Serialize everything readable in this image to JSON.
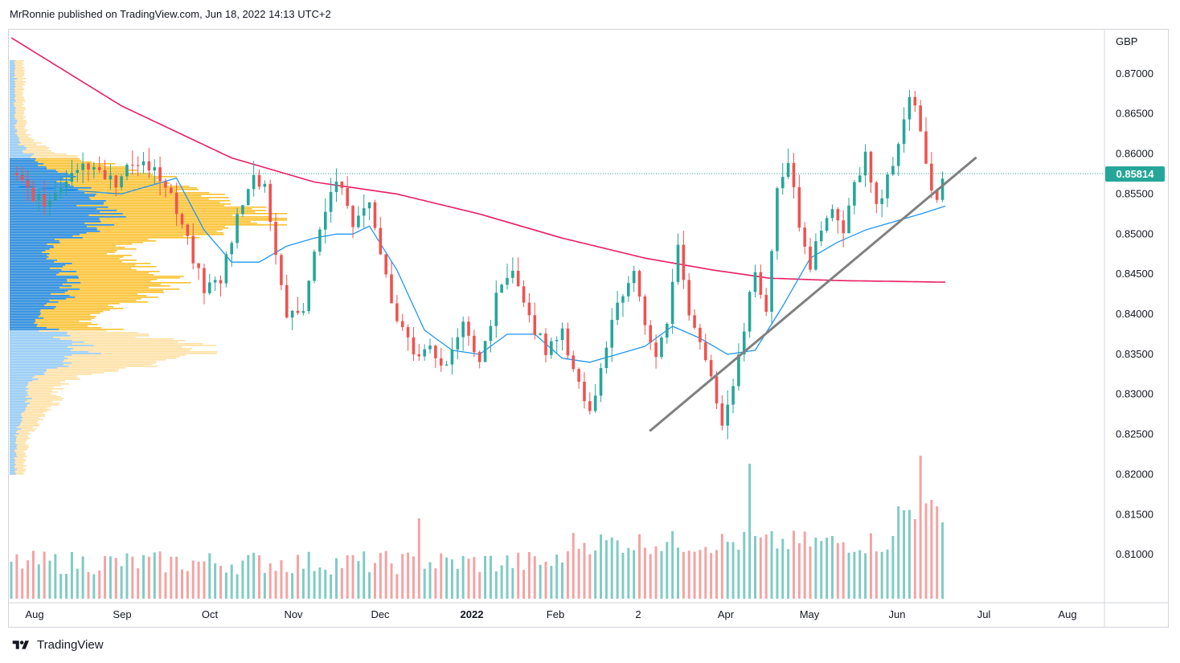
{
  "header": {
    "text": "MrRonnie published on TradingView.com, Jun 18, 2022 14:13 UTC+2"
  },
  "footer": {
    "brand": "TradingView",
    "logo_icon": "tradingview-logo-icon"
  },
  "colors": {
    "up": "#26a69a",
    "down": "#ef5350",
    "up_volume": "#80cbc4",
    "down_volume": "#f4a3a3",
    "ma_long": "#e91e63",
    "ma_short": "#2196f3",
    "trendline": "#808080",
    "vp_blue_dark": "#1e88e5",
    "vp_blue_light": "#90caf9",
    "vp_yellow_dark": "#fbc02d",
    "vp_yellow_light": "#ffe0a3",
    "last_price_bg": "#26a69a"
  },
  "chart_data": {
    "type": "candlestick",
    "symbol_currency": "GBP",
    "last_price_label": "0.85814",
    "last_price": 0.85814,
    "x_ticks": [
      "Aug",
      "Sep",
      "Oct",
      "Nov",
      "Dec",
      "2022",
      "Feb",
      "2",
      "Apr",
      "May",
      "Jun",
      "Jul",
      "Aug"
    ],
    "y_ticks": [
      "0.87000",
      "0.86500",
      "0.86000",
      "0.85500",
      "0.85000",
      "0.84500",
      "0.84000",
      "0.83500",
      "0.83000",
      "0.82500",
      "0.82000",
      "0.81500",
      "0.81000"
    ],
    "ylim": [
      0.8045,
      0.8755
    ],
    "price_path": [
      [
        0,
        0.8575
      ],
      [
        12,
        0.8535
      ],
      [
        22,
        0.858
      ],
      [
        30,
        0.859
      ],
      [
        38,
        0.856
      ],
      [
        45,
        0.8595
      ],
      [
        52,
        0.858
      ],
      [
        58,
        0.8545
      ],
      [
        64,
        0.849
      ],
      [
        70,
        0.843
      ],
      [
        76,
        0.8445
      ],
      [
        82,
        0.852
      ],
      [
        88,
        0.857
      ],
      [
        92,
        0.856
      ],
      [
        96,
        0.848
      ],
      [
        100,
        0.8395
      ],
      [
        106,
        0.841
      ],
      [
        112,
        0.851
      ],
      [
        118,
        0.857
      ],
      [
        124,
        0.851
      ],
      [
        130,
        0.8545
      ],
      [
        134,
        0.847
      ],
      [
        140,
        0.8395
      ],
      [
        146,
        0.8355
      ],
      [
        152,
        0.8355
      ],
      [
        158,
        0.8335
      ],
      [
        164,
        0.8385
      ],
      [
        170,
        0.8335
      ],
      [
        176,
        0.842
      ],
      [
        182,
        0.8455
      ],
      [
        188,
        0.8395
      ],
      [
        194,
        0.8355
      ],
      [
        200,
        0.8375
      ],
      [
        206,
        0.8315
      ],
      [
        210,
        0.8275
      ],
      [
        214,
        0.833
      ],
      [
        218,
        0.8395
      ],
      [
        222,
        0.843
      ],
      [
        226,
        0.8455
      ],
      [
        230,
        0.839
      ],
      [
        234,
        0.834
      ],
      [
        238,
        0.8395
      ],
      [
        242,
        0.848
      ],
      [
        246,
        0.8405
      ],
      [
        250,
        0.837
      ],
      [
        254,
        0.8315
      ],
      [
        258,
        0.8265
      ],
      [
        262,
        0.831
      ],
      [
        266,
        0.8385
      ],
      [
        270,
        0.846
      ],
      [
        274,
        0.84
      ],
      [
        278,
        0.855
      ],
      [
        282,
        0.8595
      ],
      [
        286,
        0.851
      ],
      [
        290,
        0.846
      ],
      [
        294,
        0.851
      ],
      [
        298,
        0.8535
      ],
      [
        302,
        0.85
      ],
      [
        306,
        0.856
      ],
      [
        310,
        0.8595
      ],
      [
        314,
        0.8535
      ],
      [
        318,
        0.857
      ],
      [
        321,
        0.86
      ],
      [
        324,
        0.865
      ],
      [
        327,
        0.869
      ],
      [
        330,
        0.8625
      ],
      [
        333,
        0.856
      ],
      [
        336,
        0.8535
      ],
      [
        339,
        0.8581
      ]
    ],
    "ma_long": [
      [
        0,
        0.8745
      ],
      [
        40,
        0.866
      ],
      [
        80,
        0.8595
      ],
      [
        110,
        0.8565
      ],
      [
        140,
        0.855
      ],
      [
        170,
        0.8525
      ],
      [
        200,
        0.8495
      ],
      [
        230,
        0.847
      ],
      [
        255,
        0.8455
      ],
      [
        275,
        0.8445
      ],
      [
        300,
        0.8442
      ],
      [
        339,
        0.844
      ]
    ],
    "ma_short": [
      [
        0,
        0.856
      ],
      [
        40,
        0.855
      ],
      [
        60,
        0.857
      ],
      [
        70,
        0.8505
      ],
      [
        80,
        0.8465
      ],
      [
        90,
        0.8465
      ],
      [
        100,
        0.8485
      ],
      [
        110,
        0.8495
      ],
      [
        118,
        0.85
      ],
      [
        124,
        0.85
      ],
      [
        130,
        0.851
      ],
      [
        140,
        0.8455
      ],
      [
        150,
        0.838
      ],
      [
        160,
        0.8355
      ],
      [
        170,
        0.835
      ],
      [
        180,
        0.8375
      ],
      [
        190,
        0.8375
      ],
      [
        200,
        0.8345
      ],
      [
        210,
        0.834
      ],
      [
        220,
        0.835
      ],
      [
        230,
        0.836
      ],
      [
        240,
        0.8385
      ],
      [
        250,
        0.837
      ],
      [
        260,
        0.835
      ],
      [
        270,
        0.8355
      ],
      [
        280,
        0.841
      ],
      [
        290,
        0.847
      ],
      [
        300,
        0.849
      ],
      [
        310,
        0.8505
      ],
      [
        320,
        0.8515
      ],
      [
        330,
        0.8525
      ],
      [
        339,
        0.8535
      ]
    ],
    "trendline": [
      [
        232,
        0.8255
      ],
      [
        350,
        0.8595
      ]
    ]
  }
}
